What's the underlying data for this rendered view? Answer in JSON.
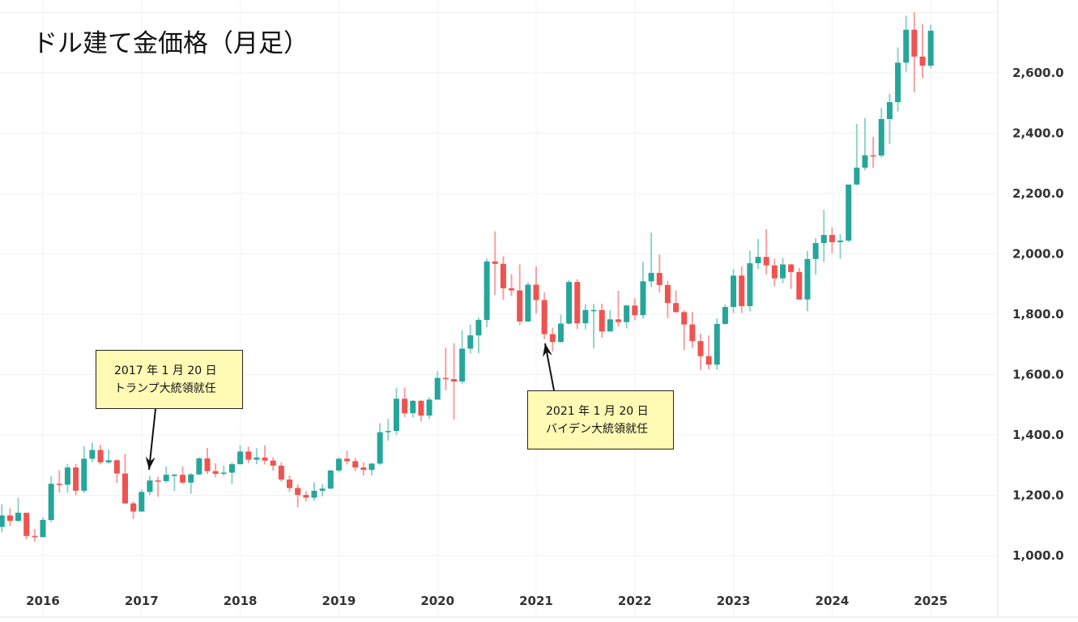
{
  "title": "ドル建て金価格（月足）",
  "annotations": [
    {
      "date_line": "2017 年 1 月 20 日",
      "event_line": "トランプ大統領就任",
      "target": "2017-01"
    },
    {
      "date_line": "2021 年 1 月 20 日",
      "event_line": "バイデン大統領就任",
      "target": "2021-01"
    }
  ],
  "chart_data": {
    "type": "candlestick",
    "title": "ドル建て金価格（月足）",
    "interval": "monthly",
    "ylim": [
      900,
      2820
    ],
    "y_ticks": [
      "1,000.0",
      "1,200.0",
      "1,400.0",
      "1,600.0",
      "1,800.0",
      "2,000.0",
      "2,200.0",
      "2,400.0",
      "2,600.0"
    ],
    "y_tick_values": [
      1000,
      1200,
      1400,
      1600,
      1800,
      2000,
      2200,
      2400,
      2600
    ],
    "x_ticks": [
      "2016",
      "2017",
      "2018",
      "2019",
      "2020",
      "2021",
      "2022",
      "2023",
      "2024",
      "2025"
    ],
    "grid": true,
    "y_axis_position": "right",
    "colors": {
      "up": "#26a69a",
      "down": "#ef5350",
      "up_wick": "#8fd3cb",
      "down_wick": "#f4a2a0"
    },
    "columns": [
      "month",
      "open",
      "high",
      "low",
      "close"
    ],
    "candles": [
      [
        "2015-08",
        1095,
        1170,
        1077,
        1133
      ],
      [
        "2015-09",
        1133,
        1157,
        1098,
        1115
      ],
      [
        "2015-10",
        1115,
        1191,
        1112,
        1142
      ],
      [
        "2015-11",
        1142,
        1142,
        1053,
        1065
      ],
      [
        "2015-12",
        1065,
        1088,
        1046,
        1061
      ],
      [
        "2016-01",
        1061,
        1127,
        1062,
        1118
      ],
      [
        "2016-02",
        1118,
        1263,
        1111,
        1238
      ],
      [
        "2016-03",
        1238,
        1283,
        1208,
        1235
      ],
      [
        "2016-04",
        1235,
        1304,
        1208,
        1292
      ],
      [
        "2016-05",
        1292,
        1304,
        1200,
        1215
      ],
      [
        "2016-06",
        1215,
        1362,
        1208,
        1321
      ],
      [
        "2016-07",
        1321,
        1375,
        1310,
        1350
      ],
      [
        "2016-08",
        1350,
        1367,
        1302,
        1309
      ],
      [
        "2016-09",
        1309,
        1352,
        1304,
        1316
      ],
      [
        "2016-10",
        1316,
        1319,
        1241,
        1272
      ],
      [
        "2016-11",
        1272,
        1337,
        1171,
        1173
      ],
      [
        "2016-12",
        1173,
        1180,
        1122,
        1146
      ],
      [
        "2017-01",
        1146,
        1220,
        1146,
        1211
      ],
      [
        "2017-02",
        1211,
        1264,
        1200,
        1249
      ],
      [
        "2017-03",
        1249,
        1261,
        1195,
        1247
      ],
      [
        "2017-04",
        1247,
        1296,
        1241,
        1268
      ],
      [
        "2017-05",
        1268,
        1271,
        1214,
        1268
      ],
      [
        "2017-06",
        1268,
        1296,
        1237,
        1242
      ],
      [
        "2017-07",
        1242,
        1274,
        1205,
        1269
      ],
      [
        "2017-08",
        1269,
        1326,
        1267,
        1322
      ],
      [
        "2017-09",
        1322,
        1357,
        1271,
        1280
      ],
      [
        "2017-10",
        1280,
        1306,
        1260,
        1271
      ],
      [
        "2017-11",
        1271,
        1299,
        1264,
        1275
      ],
      [
        "2017-12",
        1275,
        1309,
        1237,
        1303
      ],
      [
        "2018-01",
        1303,
        1366,
        1302,
        1345
      ],
      [
        "2018-02",
        1345,
        1361,
        1307,
        1318
      ],
      [
        "2018-03",
        1318,
        1356,
        1303,
        1325
      ],
      [
        "2018-04",
        1325,
        1365,
        1302,
        1315
      ],
      [
        "2018-05",
        1315,
        1326,
        1282,
        1298
      ],
      [
        "2018-06",
        1298,
        1309,
        1245,
        1252
      ],
      [
        "2018-07",
        1252,
        1265,
        1211,
        1224
      ],
      [
        "2018-08",
        1224,
        1237,
        1160,
        1201
      ],
      [
        "2018-09",
        1201,
        1214,
        1180,
        1192
      ],
      [
        "2018-10",
        1192,
        1243,
        1182,
        1215
      ],
      [
        "2018-11",
        1215,
        1237,
        1196,
        1222
      ],
      [
        "2018-12",
        1222,
        1284,
        1221,
        1282
      ],
      [
        "2019-01",
        1282,
        1326,
        1276,
        1321
      ],
      [
        "2019-02",
        1321,
        1347,
        1302,
        1313
      ],
      [
        "2019-03",
        1313,
        1324,
        1281,
        1292
      ],
      [
        "2019-04",
        1292,
        1310,
        1266,
        1284
      ],
      [
        "2019-05",
        1284,
        1306,
        1266,
        1305
      ],
      [
        "2019-06",
        1305,
        1439,
        1301,
        1409
      ],
      [
        "2019-07",
        1409,
        1453,
        1381,
        1413
      ],
      [
        "2019-08",
        1413,
        1555,
        1400,
        1520
      ],
      [
        "2019-09",
        1520,
        1557,
        1459,
        1472
      ],
      [
        "2019-10",
        1472,
        1516,
        1458,
        1513
      ],
      [
        "2019-11",
        1513,
        1516,
        1445,
        1464
      ],
      [
        "2019-12",
        1464,
        1525,
        1454,
        1517
      ],
      [
        "2020-01",
        1517,
        1611,
        1517,
        1589
      ],
      [
        "2020-02",
        1589,
        1689,
        1548,
        1585
      ],
      [
        "2020-03",
        1585,
        1704,
        1451,
        1577
      ],
      [
        "2020-04",
        1577,
        1747,
        1568,
        1686
      ],
      [
        "2020-05",
        1686,
        1765,
        1670,
        1730
      ],
      [
        "2020-06",
        1730,
        1789,
        1671,
        1781
      ],
      [
        "2020-07",
        1781,
        1984,
        1757,
        1975
      ],
      [
        "2020-08",
        1975,
        2075,
        1863,
        1967
      ],
      [
        "2020-09",
        1967,
        1992,
        1848,
        1886
      ],
      [
        "2020-10",
        1886,
        1933,
        1860,
        1879
      ],
      [
        "2020-11",
        1879,
        1965,
        1764,
        1776
      ],
      [
        "2020-12",
        1776,
        1906,
        1775,
        1898
      ],
      [
        "2021-01",
        1898,
        1959,
        1802,
        1847
      ],
      [
        "2021-02",
        1847,
        1872,
        1717,
        1734
      ],
      [
        "2021-03",
        1734,
        1755,
        1677,
        1708
      ],
      [
        "2021-04",
        1708,
        1798,
        1706,
        1769
      ],
      [
        "2021-05",
        1769,
        1913,
        1766,
        1907
      ],
      [
        "2021-06",
        1907,
        1916,
        1751,
        1770
      ],
      [
        "2021-07",
        1770,
        1833,
        1750,
        1814
      ],
      [
        "2021-08",
        1814,
        1834,
        1687,
        1814
      ],
      [
        "2021-09",
        1814,
        1835,
        1722,
        1743
      ],
      [
        "2021-10",
        1743,
        1814,
        1746,
        1783
      ],
      [
        "2021-11",
        1783,
        1877,
        1759,
        1774
      ],
      [
        "2021-12",
        1774,
        1831,
        1753,
        1829
      ],
      [
        "2022-01",
        1829,
        1853,
        1780,
        1797
      ],
      [
        "2022-02",
        1797,
        1974,
        1786,
        1909
      ],
      [
        "2022-03",
        1909,
        2070,
        1890,
        1937
      ],
      [
        "2022-04",
        1937,
        1998,
        1872,
        1897
      ],
      [
        "2022-05",
        1897,
        1910,
        1787,
        1837
      ],
      [
        "2022-06",
        1837,
        1879,
        1805,
        1807
      ],
      [
        "2022-07",
        1807,
        1814,
        1681,
        1766
      ],
      [
        "2022-08",
        1766,
        1807,
        1688,
        1711
      ],
      [
        "2022-09",
        1711,
        1735,
        1615,
        1661
      ],
      [
        "2022-10",
        1661,
        1730,
        1617,
        1633
      ],
      [
        "2022-11",
        1633,
        1787,
        1616,
        1768
      ],
      [
        "2022-12",
        1768,
        1833,
        1765,
        1824
      ],
      [
        "2023-01",
        1824,
        1949,
        1804,
        1928
      ],
      [
        "2023-02",
        1928,
        1959,
        1804,
        1827
      ],
      [
        "2023-03",
        1827,
        2010,
        1810,
        1969
      ],
      [
        "2023-04",
        1969,
        2049,
        1950,
        1990
      ],
      [
        "2023-05",
        1990,
        2082,
        1932,
        1962
      ],
      [
        "2023-06",
        1962,
        1984,
        1893,
        1919
      ],
      [
        "2023-07",
        1919,
        1987,
        1903,
        1965
      ],
      [
        "2023-08",
        1965,
        1967,
        1884,
        1940
      ],
      [
        "2023-09",
        1940,
        1953,
        1848,
        1849
      ],
      [
        "2023-10",
        1849,
        2010,
        1810,
        1983
      ],
      [
        "2023-11",
        1983,
        2052,
        1931,
        2036
      ],
      [
        "2023-12",
        2036,
        2146,
        1973,
        2063
      ],
      [
        "2024-01",
        2063,
        2088,
        2002,
        2039
      ],
      [
        "2024-02",
        2039,
        2065,
        1984,
        2044
      ],
      [
        "2024-03",
        2044,
        2225,
        2039,
        2230
      ],
      [
        "2024-04",
        2230,
        2431,
        2228,
        2286
      ],
      [
        "2024-05",
        2286,
        2450,
        2277,
        2327
      ],
      [
        "2024-06",
        2327,
        2388,
        2286,
        2326
      ],
      [
        "2024-07",
        2326,
        2483,
        2319,
        2447
      ],
      [
        "2024-08",
        2447,
        2531,
        2364,
        2503
      ],
      [
        "2024-09",
        2503,
        2685,
        2472,
        2634
      ],
      [
        "2024-10",
        2634,
        2790,
        2604,
        2743
      ],
      [
        "2024-11",
        2743,
        2801,
        2536,
        2654
      ],
      [
        "2024-12",
        2654,
        2762,
        2583,
        2624
      ],
      [
        "2025-01",
        2624,
        2760,
        2614,
        2740
      ]
    ]
  }
}
